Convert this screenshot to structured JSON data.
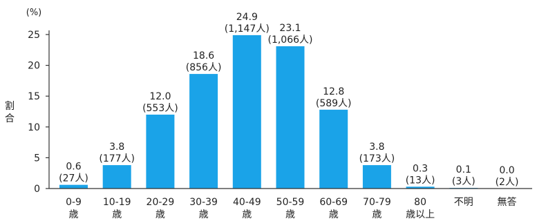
{
  "chart_data": {
    "type": "bar",
    "unit_label": "(%)",
    "ylabel": "割合",
    "ylim": [
      0,
      25
    ],
    "yticks": [
      0,
      5,
      10,
      15,
      20,
      25
    ],
    "grid": false,
    "categories": [
      [
        "0-9",
        "歳"
      ],
      [
        "10-19",
        "歳"
      ],
      [
        "20-29",
        "歳"
      ],
      [
        "30-39",
        "歳"
      ],
      [
        "40-49",
        "歳"
      ],
      [
        "50-59",
        "歳"
      ],
      [
        "60-69",
        "歳"
      ],
      [
        "70-79",
        "歳"
      ],
      [
        "80",
        "歳以上"
      ],
      [
        "不明"
      ],
      [
        "無答"
      ]
    ],
    "values": [
      0.6,
      3.8,
      12.0,
      18.6,
      24.9,
      23.1,
      12.8,
      3.8,
      0.3,
      0.1,
      0.0
    ],
    "value_labels": [
      "0.6",
      "3.8",
      "12.0",
      "18.6",
      "24.9",
      "23.1",
      "12.8",
      "3.8",
      "0.3",
      "0.1",
      "0.0"
    ],
    "count_labels": [
      "(27人)",
      "(177人)",
      "(553人)",
      "(856人)",
      "(1,147人)",
      "(1,066人)",
      "(589人)",
      "(173人)",
      "(13人)",
      "(3人)",
      "(2人)"
    ],
    "bar_color": "#1aa3e8",
    "axis_color": "#333333"
  }
}
